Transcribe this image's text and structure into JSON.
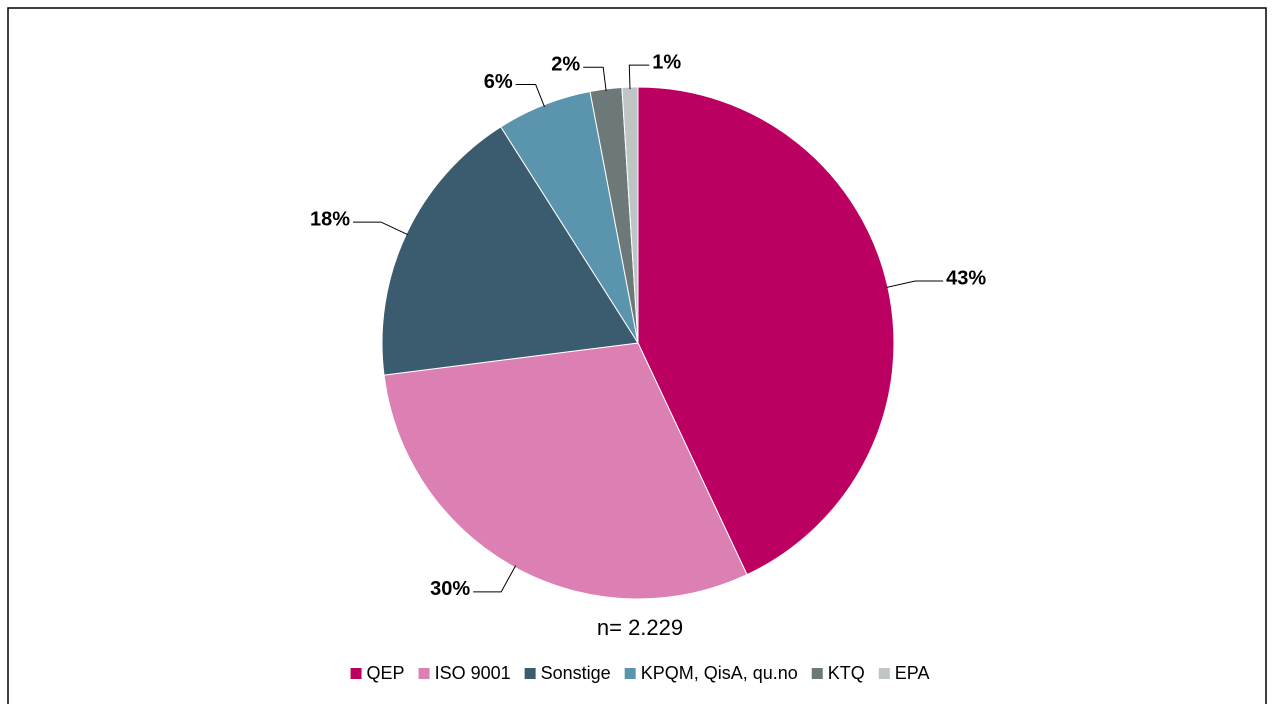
{
  "chart_data": {
    "type": "pie",
    "categories": [
      "QEP",
      "ISO 9001",
      "Sonstige",
      "KPQM, QisA, qu.no",
      "KTQ",
      "EPA"
    ],
    "values": [
      43,
      30,
      18,
      6,
      2,
      1
    ],
    "value_labels": [
      "43%",
      "30%",
      "18%",
      "6%",
      "2%",
      "1%"
    ],
    "colors": [
      "#bb0062",
      "#dc7fb2",
      "#3a5c6e",
      "#5b94ad",
      "#6d7878",
      "#bfc4c4"
    ],
    "annotation": "n= 2.229",
    "legend": "bottom"
  }
}
